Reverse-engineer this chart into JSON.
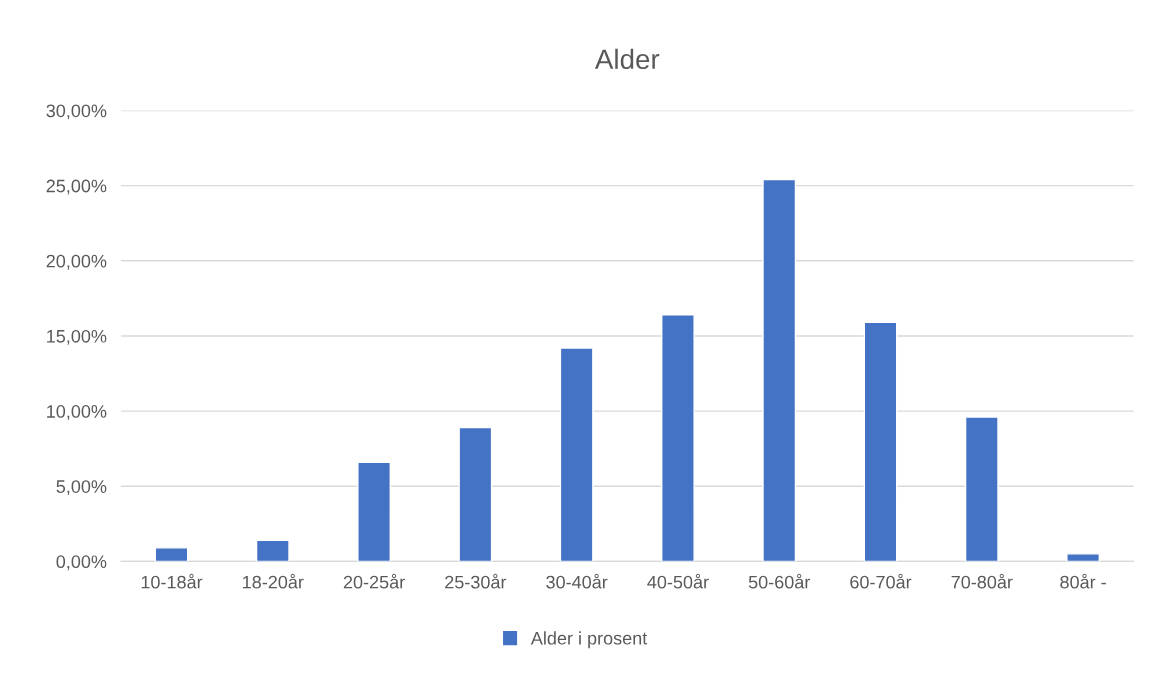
{
  "chart_data": {
    "type": "bar",
    "title": "Alder",
    "categories": [
      "10-18år",
      "18-20år",
      "20-25år",
      "25-30år",
      "30-40år",
      "40-50år",
      "50-60år",
      "60-70år",
      "70-80år",
      "80år -"
    ],
    "series": [
      {
        "name": "Alder i prosent",
        "color": "#4472c4",
        "values": [
          0.9,
          1.4,
          6.6,
          8.9,
          14.2,
          16.4,
          25.4,
          15.9,
          9.6,
          0.5
        ]
      }
    ],
    "ylim": [
      0,
      30
    ],
    "yticks": [
      {
        "value": 0,
        "label": "0,00%"
      },
      {
        "value": 5,
        "label": "5,00%"
      },
      {
        "value": 10,
        "label": "10,00%"
      },
      {
        "value": 15,
        "label": "15,00%"
      },
      {
        "value": 20,
        "label": "20,00%"
      },
      {
        "value": 25,
        "label": "25,00%"
      },
      {
        "value": 30,
        "label": "30,00%"
      }
    ],
    "grid": "y",
    "legend": "bottom"
  }
}
